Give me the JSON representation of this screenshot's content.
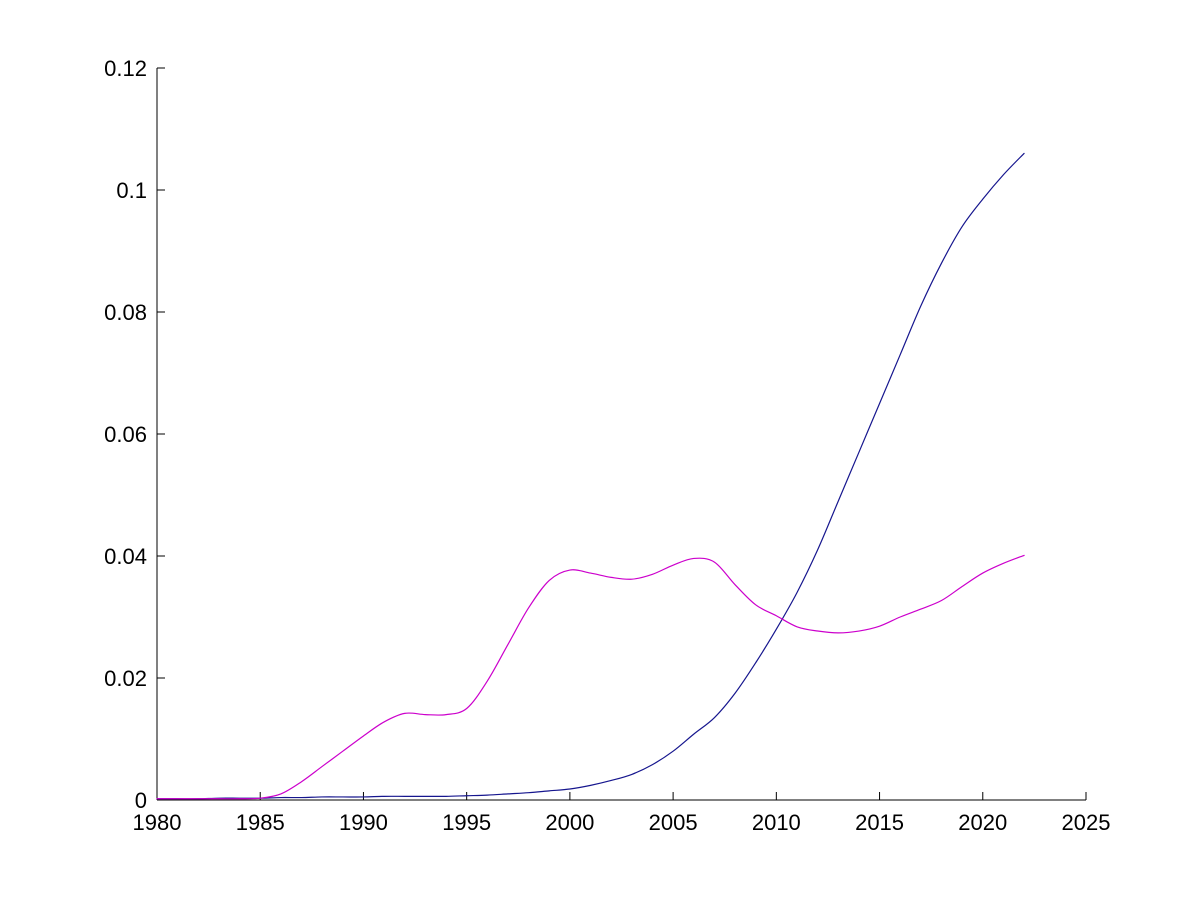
{
  "figure": {
    "background": "#ffffff",
    "axis_color": "#000000",
    "tick_label_color": "#000000"
  },
  "chart_data": {
    "type": "line",
    "title": "",
    "xlabel": "",
    "ylabel": "",
    "grid": false,
    "legend": "none",
    "xlim": [
      1980,
      2025
    ],
    "ylim": [
      0,
      0.12
    ],
    "xticks": [
      1980,
      1985,
      1990,
      1995,
      2000,
      2005,
      2010,
      2015,
      2020,
      2025
    ],
    "xtick_labels": [
      "1980",
      "1985",
      "1990",
      "1995",
      "2000",
      "2005",
      "2010",
      "2015",
      "2020",
      "2025"
    ],
    "yticks": [
      0,
      0.02,
      0.04,
      0.06,
      0.08,
      0.1,
      0.12
    ],
    "ytick_labels": [
      "0",
      "0.02",
      "0.04",
      "0.06",
      "0.08",
      "0.1",
      "0.12"
    ],
    "x": [
      1980,
      1981,
      1982,
      1983,
      1984,
      1985,
      1986,
      1987,
      1988,
      1989,
      1990,
      1991,
      1992,
      1993,
      1994,
      1995,
      1996,
      1997,
      1998,
      1999,
      2000,
      2001,
      2002,
      2003,
      2004,
      2005,
      2006,
      2007,
      2008,
      2009,
      2010,
      2011,
      2012,
      2013,
      2014,
      2015,
      2016,
      2017,
      2018,
      2019,
      2020,
      2021,
      2022
    ],
    "series": [
      {
        "name": "dark-blue-line",
        "color": "#16168e",
        "values": [
          0.0002,
          0.0002,
          0.0002,
          0.0003,
          0.0003,
          0.0003,
          0.0004,
          0.0004,
          0.0005,
          0.0005,
          0.0005,
          0.0006,
          0.0006,
          0.0006,
          0.0006,
          0.0007,
          0.0008,
          0.001,
          0.0012,
          0.0015,
          0.0018,
          0.0024,
          0.0032,
          0.0042,
          0.0058,
          0.008,
          0.0108,
          0.0135,
          0.0175,
          0.0225,
          0.028,
          0.034,
          0.041,
          0.049,
          0.057,
          0.065,
          0.073,
          0.081,
          0.088,
          0.094,
          0.0985,
          0.1025,
          0.106
        ]
      },
      {
        "name": "magenta-line",
        "color": "#cc00cc",
        "values": [
          0.0002,
          0.0002,
          0.0002,
          0.0002,
          0.0002,
          0.0003,
          0.001,
          0.003,
          0.0055,
          0.008,
          0.0105,
          0.0128,
          0.0142,
          0.014,
          0.014,
          0.015,
          0.0195,
          0.0255,
          0.0315,
          0.036,
          0.0377,
          0.0372,
          0.0365,
          0.0362,
          0.037,
          0.0385,
          0.0396,
          0.039,
          0.0353,
          0.032,
          0.0302,
          0.0284,
          0.0277,
          0.0274,
          0.0277,
          0.0285,
          0.03,
          0.0313,
          0.0327,
          0.035,
          0.0372,
          0.0388,
          0.0401
        ]
      }
    ]
  }
}
